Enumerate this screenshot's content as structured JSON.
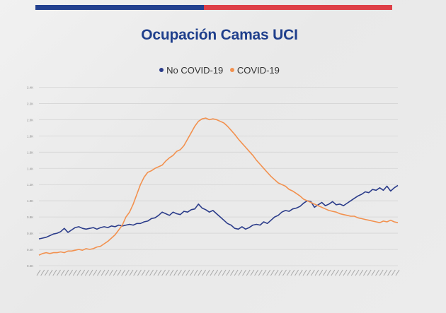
{
  "colors": {
    "accent_blue": "#23418f",
    "accent_red": "#de3f47",
    "title": "#1f3f8c",
    "no_covid": "#2b3c8a",
    "covid": "#f2914f",
    "grid": "#d4d4d4",
    "tick": "#8a8a8a"
  },
  "chart_data": {
    "type": "line",
    "title": "Ocupación Camas UCI",
    "xlabel": "",
    "ylabel": "",
    "ylim": [
      0.2,
      2.5
    ],
    "y_ticks": [
      "0.2K",
      "0.4K",
      "0.6K",
      "0.8K",
      "1.0K",
      "1.2K",
      "1.4K",
      "1.6K",
      "1.8K",
      "2.0K",
      "2.2K",
      "2.4K"
    ],
    "grid": true,
    "legend": "top-center",
    "x_tick_count": 90,
    "series": [
      {
        "name": "No COVID-19",
        "color": "#2b3c8a",
        "points": [
          [
            0,
            0.53
          ],
          [
            1,
            0.54
          ],
          [
            2,
            0.55
          ],
          [
            3,
            0.57
          ],
          [
            4,
            0.59
          ],
          [
            5,
            0.6
          ],
          [
            6,
            0.62
          ],
          [
            7,
            0.66
          ],
          [
            8,
            0.61
          ],
          [
            9,
            0.64
          ],
          [
            10,
            0.67
          ],
          [
            11,
            0.68
          ],
          [
            12,
            0.66
          ],
          [
            13,
            0.65
          ],
          [
            14,
            0.66
          ],
          [
            15,
            0.67
          ],
          [
            16,
            0.65
          ],
          [
            17,
            0.67
          ],
          [
            18,
            0.68
          ],
          [
            19,
            0.67
          ],
          [
            20,
            0.69
          ],
          [
            21,
            0.68
          ],
          [
            22,
            0.7
          ],
          [
            23,
            0.69
          ],
          [
            24,
            0.7
          ],
          [
            25,
            0.71
          ],
          [
            26,
            0.7
          ],
          [
            27,
            0.72
          ],
          [
            28,
            0.72
          ],
          [
            29,
            0.74
          ],
          [
            30,
            0.75
          ],
          [
            31,
            0.78
          ],
          [
            32,
            0.79
          ],
          [
            33,
            0.82
          ],
          [
            34,
            0.86
          ],
          [
            35,
            0.84
          ],
          [
            36,
            0.82
          ],
          [
            37,
            0.86
          ],
          [
            38,
            0.84
          ],
          [
            39,
            0.83
          ],
          [
            40,
            0.87
          ],
          [
            41,
            0.86
          ],
          [
            42,
            0.89
          ],
          [
            43,
            0.9
          ],
          [
            44,
            0.96
          ],
          [
            45,
            0.91
          ],
          [
            46,
            0.89
          ],
          [
            47,
            0.86
          ],
          [
            48,
            0.88
          ],
          [
            49,
            0.84
          ],
          [
            50,
            0.8
          ],
          [
            51,
            0.76
          ],
          [
            52,
            0.72
          ],
          [
            53,
            0.7
          ],
          [
            54,
            0.66
          ],
          [
            55,
            0.65
          ],
          [
            56,
            0.68
          ],
          [
            57,
            0.65
          ],
          [
            58,
            0.67
          ],
          [
            59,
            0.7
          ],
          [
            60,
            0.71
          ],
          [
            61,
            0.7
          ],
          [
            62,
            0.74
          ],
          [
            63,
            0.72
          ],
          [
            64,
            0.76
          ],
          [
            65,
            0.8
          ],
          [
            66,
            0.82
          ],
          [
            67,
            0.86
          ],
          [
            68,
            0.88
          ],
          [
            69,
            0.87
          ],
          [
            70,
            0.9
          ],
          [
            71,
            0.91
          ],
          [
            72,
            0.93
          ],
          [
            73,
            0.97
          ],
          [
            74,
            1.0
          ],
          [
            75,
            0.99
          ],
          [
            76,
            0.92
          ],
          [
            77,
            0.95
          ],
          [
            78,
            0.98
          ],
          [
            79,
            0.94
          ],
          [
            80,
            0.96
          ],
          [
            81,
            0.99
          ],
          [
            82,
            0.95
          ],
          [
            83,
            0.96
          ],
          [
            84,
            0.94
          ],
          [
            85,
            0.97
          ],
          [
            86,
            1.0
          ],
          [
            87,
            1.03
          ],
          [
            88,
            1.06
          ],
          [
            89,
            1.08
          ],
          [
            90,
            1.11
          ],
          [
            91,
            1.1
          ],
          [
            92,
            1.14
          ],
          [
            93,
            1.13
          ],
          [
            94,
            1.16
          ],
          [
            95,
            1.13
          ],
          [
            96,
            1.18
          ],
          [
            97,
            1.12
          ],
          [
            98,
            1.16
          ],
          [
            99,
            1.19
          ]
        ]
      },
      {
        "name": "COVID-19",
        "color": "#f2914f",
        "points": [
          [
            0,
            0.33
          ],
          [
            1,
            0.35
          ],
          [
            2,
            0.36
          ],
          [
            3,
            0.35
          ],
          [
            4,
            0.36
          ],
          [
            5,
            0.36
          ],
          [
            6,
            0.37
          ],
          [
            7,
            0.36
          ],
          [
            8,
            0.38
          ],
          [
            9,
            0.38
          ],
          [
            10,
            0.39
          ],
          [
            11,
            0.4
          ],
          [
            12,
            0.39
          ],
          [
            13,
            0.41
          ],
          [
            14,
            0.4
          ],
          [
            15,
            0.41
          ],
          [
            16,
            0.43
          ],
          [
            17,
            0.44
          ],
          [
            18,
            0.47
          ],
          [
            19,
            0.5
          ],
          [
            20,
            0.54
          ],
          [
            21,
            0.58
          ],
          [
            22,
            0.64
          ],
          [
            23,
            0.7
          ],
          [
            24,
            0.8
          ],
          [
            25,
            0.86
          ],
          [
            26,
            0.96
          ],
          [
            27,
            1.08
          ],
          [
            28,
            1.2
          ],
          [
            29,
            1.29
          ],
          [
            30,
            1.35
          ],
          [
            31,
            1.37
          ],
          [
            32,
            1.4
          ],
          [
            33,
            1.42
          ],
          [
            34,
            1.44
          ],
          [
            35,
            1.49
          ],
          [
            36,
            1.53
          ],
          [
            37,
            1.56
          ],
          [
            38,
            1.61
          ],
          [
            39,
            1.63
          ],
          [
            40,
            1.68
          ],
          [
            41,
            1.76
          ],
          [
            42,
            1.84
          ],
          [
            43,
            1.92
          ],
          [
            44,
            1.98
          ],
          [
            45,
            2.01
          ],
          [
            46,
            2.02
          ],
          [
            47,
            2.0
          ],
          [
            48,
            2.01
          ],
          [
            49,
            2.0
          ],
          [
            50,
            1.98
          ],
          [
            51,
            1.96
          ],
          [
            52,
            1.92
          ],
          [
            53,
            1.87
          ],
          [
            54,
            1.82
          ],
          [
            55,
            1.76
          ],
          [
            56,
            1.71
          ],
          [
            57,
            1.66
          ],
          [
            58,
            1.61
          ],
          [
            59,
            1.56
          ],
          [
            60,
            1.5
          ],
          [
            61,
            1.45
          ],
          [
            62,
            1.4
          ],
          [
            63,
            1.35
          ],
          [
            64,
            1.3
          ],
          [
            65,
            1.26
          ],
          [
            66,
            1.22
          ],
          [
            67,
            1.2
          ],
          [
            68,
            1.18
          ],
          [
            69,
            1.14
          ],
          [
            70,
            1.12
          ],
          [
            71,
            1.09
          ],
          [
            72,
            1.06
          ],
          [
            73,
            1.02
          ],
          [
            74,
            1.0
          ],
          [
            75,
            0.98
          ],
          [
            76,
            0.96
          ],
          [
            77,
            0.94
          ],
          [
            78,
            0.92
          ],
          [
            79,
            0.9
          ],
          [
            80,
            0.88
          ],
          [
            81,
            0.87
          ],
          [
            82,
            0.86
          ],
          [
            83,
            0.84
          ],
          [
            84,
            0.83
          ],
          [
            85,
            0.82
          ],
          [
            86,
            0.81
          ],
          [
            87,
            0.81
          ],
          [
            88,
            0.79
          ],
          [
            89,
            0.78
          ],
          [
            90,
            0.77
          ],
          [
            91,
            0.76
          ],
          [
            92,
            0.75
          ],
          [
            93,
            0.74
          ],
          [
            94,
            0.73
          ],
          [
            95,
            0.75
          ],
          [
            96,
            0.74
          ],
          [
            97,
            0.76
          ],
          [
            98,
            0.74
          ],
          [
            99,
            0.73
          ]
        ]
      }
    ]
  }
}
